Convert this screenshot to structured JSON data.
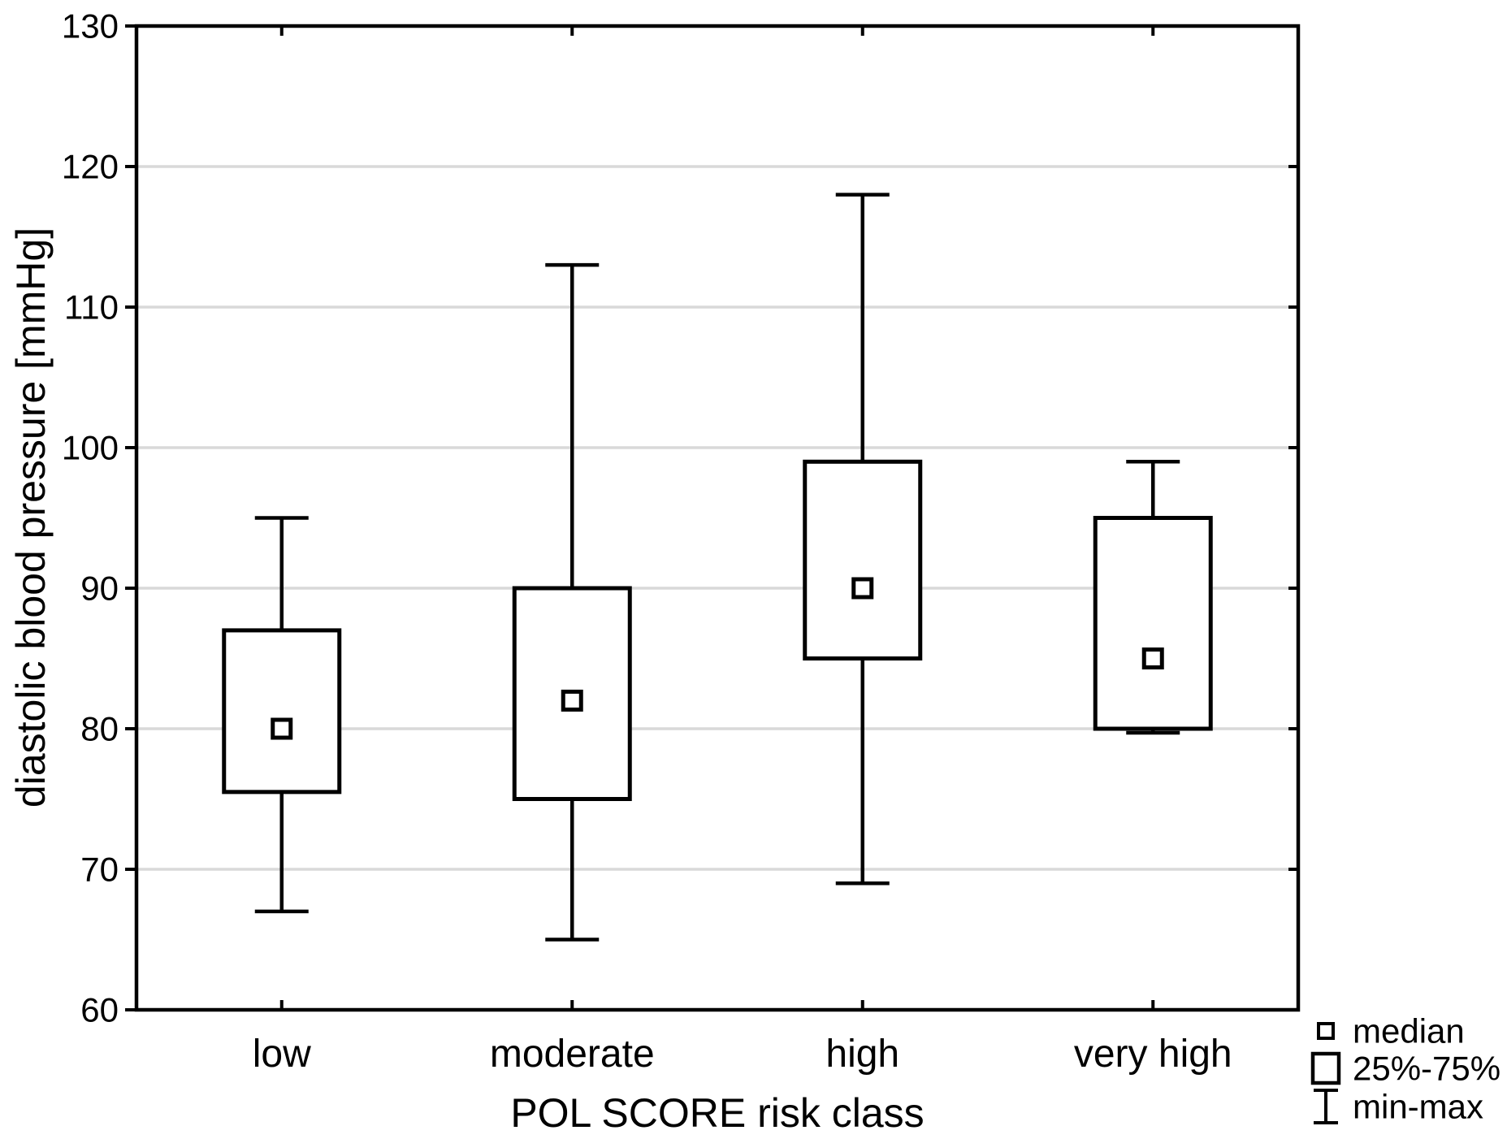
{
  "chart_data": {
    "type": "box",
    "title": "",
    "xlabel": "POL SCORE risk class",
    "ylabel": "diastolic blood pressure [mmHg]",
    "ylim": [
      60,
      130
    ],
    "ytick_step": 10,
    "grid": "horizontal-light-gray",
    "legend_position": "bottom-right-outside",
    "categories": [
      "low",
      "moderate",
      "high",
      "very high"
    ],
    "series": [
      {
        "category": "low",
        "min": 67,
        "q1": 75.5,
        "median": 80,
        "q3": 87,
        "max": 95
      },
      {
        "category": "moderate",
        "min": 65,
        "q1": 75,
        "median": 82,
        "q3": 90,
        "max": 113
      },
      {
        "category": "high",
        "min": 69,
        "q1": 85,
        "median": 90,
        "q3": 99,
        "max": 118
      },
      {
        "category": "very high",
        "min": 80,
        "q1": 80,
        "median": 85,
        "q3": 95,
        "max": 99
      }
    ],
    "legend": [
      {
        "symbol": "small-square",
        "label": "median"
      },
      {
        "symbol": "box",
        "label": "25%-75%"
      },
      {
        "symbol": "whisker",
        "label": "min-max"
      }
    ],
    "colors": {
      "line": "#000000",
      "grid": "#d9d9d9",
      "background": "#ffffff",
      "box_fill": "#ffffff"
    }
  }
}
